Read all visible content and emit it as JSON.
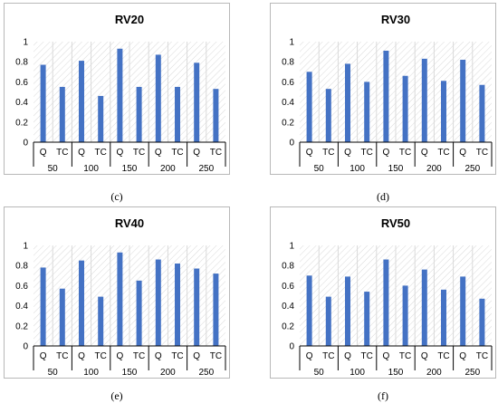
{
  "panels": [
    {
      "caption": "(c)"
    },
    {
      "caption": "(d)"
    },
    {
      "caption": "(e)"
    },
    {
      "caption": "(f)"
    }
  ],
  "colors": {
    "bar": "#4472c4",
    "hatch": "#d9d9d9",
    "frame": "#b8b8b8",
    "text": "#000000"
  },
  "chart_data": [
    {
      "type": "bar",
      "title": "RV20",
      "groups": [
        "50",
        "100",
        "150",
        "200",
        "250"
      ],
      "subcategories": [
        "Q",
        "TC"
      ],
      "values": [
        0.77,
        0.55,
        0.81,
        0.46,
        0.93,
        0.55,
        0.87,
        0.55,
        0.79,
        0.53
      ],
      "yticks": [
        "0",
        "0.2",
        "0.4",
        "0.6",
        "0.8",
        "1"
      ],
      "ylim": [
        0,
        1
      ],
      "grid": "vertical",
      "background": "hatched"
    },
    {
      "type": "bar",
      "title": "RV30",
      "groups": [
        "50",
        "100",
        "150",
        "200",
        "250"
      ],
      "subcategories": [
        "Q",
        "TC"
      ],
      "values": [
        0.7,
        0.53,
        0.78,
        0.6,
        0.91,
        0.66,
        0.83,
        0.61,
        0.82,
        0.57
      ],
      "yticks": [
        "0",
        "0.2",
        "0.4",
        "0.6",
        "0.8",
        "1"
      ],
      "ylim": [
        0,
        1
      ],
      "grid": "vertical",
      "background": "hatched"
    },
    {
      "type": "bar",
      "title": "RV40",
      "groups": [
        "50",
        "100",
        "150",
        "200",
        "250"
      ],
      "subcategories": [
        "Q",
        "TC"
      ],
      "values": [
        0.78,
        0.57,
        0.85,
        0.49,
        0.93,
        0.65,
        0.86,
        0.82,
        0.77,
        0.72
      ],
      "yticks": [
        "0",
        "0.2",
        "0.4",
        "0.6",
        "0.8",
        "1"
      ],
      "ylim": [
        0,
        1
      ],
      "grid": "vertical",
      "background": "hatched"
    },
    {
      "type": "bar",
      "title": "RV50",
      "groups": [
        "50",
        "100",
        "150",
        "200",
        "250"
      ],
      "subcategories": [
        "Q",
        "TC"
      ],
      "values": [
        0.7,
        0.49,
        0.69,
        0.54,
        0.86,
        0.6,
        0.76,
        0.56,
        0.69,
        0.47
      ],
      "yticks": [
        "0",
        "0.2",
        "0.4",
        "0.6",
        "0.8",
        "1"
      ],
      "ylim": [
        0,
        1
      ],
      "grid": "vertical",
      "background": "hatched"
    }
  ]
}
